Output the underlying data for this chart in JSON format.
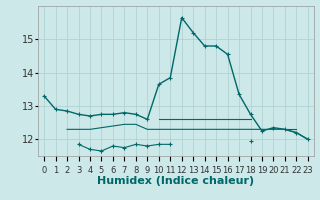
{
  "title": "",
  "xlabel": "Humidex (Indice chaleur)",
  "bg_color": "#cce8e8",
  "grid_color": "#aacfcf",
  "line_color": "#006868",
  "x": [
    0,
    1,
    2,
    3,
    4,
    5,
    6,
    7,
    8,
    9,
    10,
    11,
    12,
    13,
    14,
    15,
    16,
    17,
    18,
    19,
    20,
    21,
    22,
    23
  ],
  "line_main": [
    13.3,
    12.9,
    12.85,
    12.75,
    12.7,
    12.75,
    12.75,
    12.8,
    12.75,
    12.6,
    13.65,
    13.85,
    15.65,
    15.2,
    14.8,
    14.8,
    14.55,
    13.35,
    12.75,
    12.25,
    12.35,
    12.3,
    12.2,
    12.0
  ],
  "line_upper_flat": [
    null,
    null,
    null,
    null,
    null,
    null,
    null,
    null,
    null,
    null,
    12.6,
    12.6,
    12.6,
    12.6,
    12.6,
    12.6,
    12.6,
    12.6,
    12.6,
    null,
    null,
    12.3,
    12.3,
    null
  ],
  "line_lower_flat": [
    null,
    null,
    12.3,
    12.3,
    12.3,
    12.35,
    12.4,
    12.45,
    12.45,
    12.3,
    12.3,
    12.3,
    12.3,
    12.3,
    12.3,
    12.3,
    12.3,
    12.3,
    12.3,
    12.3,
    12.3,
    12.3,
    12.2,
    12.0
  ],
  "line_dip": [
    null,
    null,
    null,
    11.85,
    11.7,
    11.65,
    11.8,
    11.75,
    11.85,
    11.8,
    11.85,
    11.85,
    null,
    null,
    null,
    null,
    null,
    null,
    11.95,
    null,
    null,
    null,
    null,
    null
  ],
  "xlim": [
    -0.5,
    23.5
  ],
  "ylim": [
    11.5,
    16.0
  ],
  "yticks": [
    12,
    13,
    14,
    15
  ],
  "xlabel_fontsize": 8,
  "tick_fontsize": 7,
  "lw_main": 1.0,
  "lw_flat": 0.8,
  "marker_size": 2.5
}
